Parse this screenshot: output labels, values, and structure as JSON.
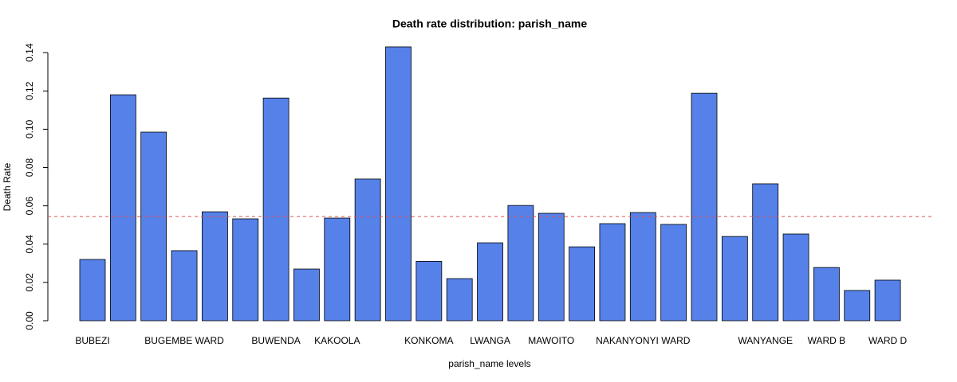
{
  "chart_data": {
    "type": "bar",
    "title": "Death rate distribution: parish_name",
    "xlabel": "parish_name levels",
    "ylabel": "Death Rate",
    "categories": [
      "BUBEZI",
      null,
      null,
      "BUGEMBE WARD",
      null,
      null,
      "BUWENDA",
      null,
      "KAKOOLA",
      null,
      null,
      "KONKOMA",
      null,
      "LWANGA",
      null,
      "MAWOITO",
      null,
      null,
      "NAKANYONYI WARD",
      null,
      null,
      null,
      "WANYANGE",
      null,
      "WARD B",
      null,
      "WARD D"
    ],
    "values": [
      0.032,
      0.118,
      0.0985,
      0.0366,
      0.0569,
      0.0532,
      0.1163,
      0.027,
      0.0536,
      0.074,
      0.143,
      0.031,
      0.022,
      0.0407,
      0.0602,
      0.0561,
      0.0386,
      0.0507,
      0.0565,
      0.0503,
      0.1188,
      0.044,
      0.0715,
      0.0453,
      0.0278,
      0.0158,
      0.0212
    ],
    "color": "#5581e9",
    "reference_line": {
      "value": 0.0544,
      "color": "#e05050"
    },
    "ylim": [
      0,
      0.149
    ],
    "yticks": [
      {
        "value": 0,
        "label": "0.00"
      },
      {
        "value": 0.02,
        "label": "0.02"
      },
      {
        "value": 0.04,
        "label": "0.04"
      },
      {
        "value": 0.06,
        "label": "0.06"
      },
      {
        "value": 0.08,
        "label": "0.08"
      },
      {
        "value": 0.1,
        "label": "0.10"
      },
      {
        "value": 0.12,
        "label": "0.12"
      },
      {
        "value": 0.14,
        "label": "0.14"
      }
    ],
    "grid": false
  }
}
